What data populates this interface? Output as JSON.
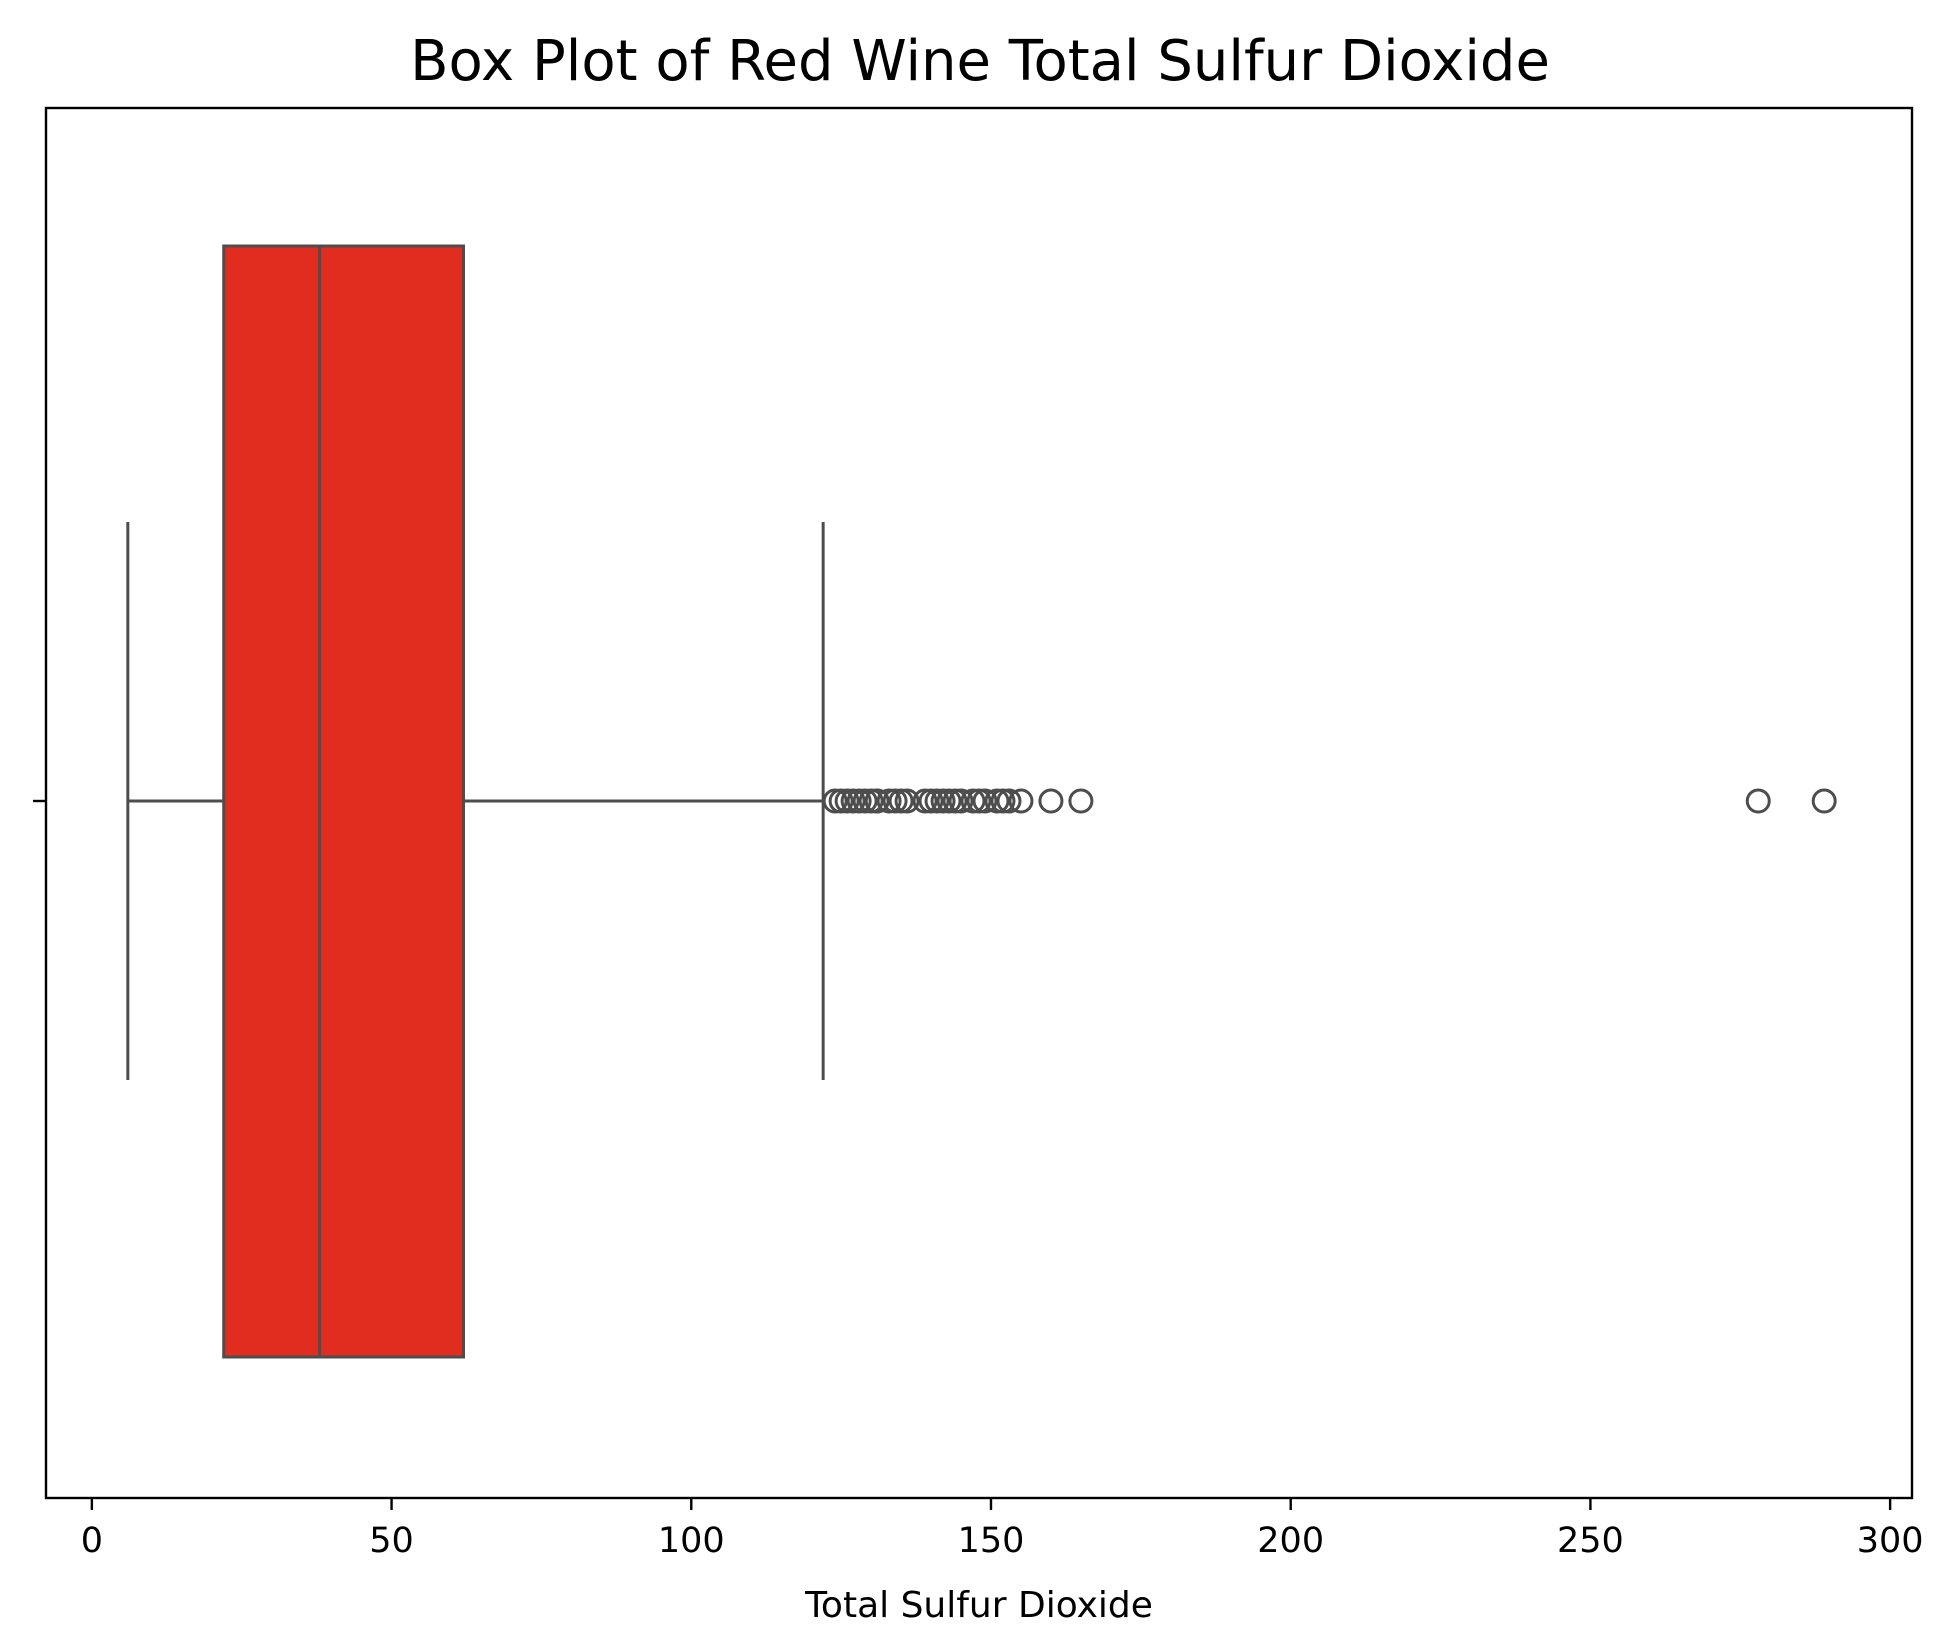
{
  "chart_data": {
    "type": "box",
    "title": "Box Plot of Red Wine Total Sulfur Dioxide",
    "xlabel": "Total Sulfur Dioxide",
    "ylabel": "",
    "orientation": "horizontal",
    "xlim": [
      -7.65,
      303.65
    ],
    "xticks": [
      0,
      50,
      100,
      150,
      200,
      250,
      300
    ],
    "xtick_labels": [
      "0",
      "50",
      "100",
      "150",
      "200",
      "250",
      "300"
    ],
    "grid": false,
    "box": {
      "whisker_low": 6,
      "q1": 22,
      "median": 38,
      "q3": 62,
      "whisker_high": 122,
      "fill_color": "#e02d1f",
      "line_color": "#4d4d4d"
    },
    "outliers": [
      124,
      125,
      126,
      127,
      128,
      129,
      130,
      131,
      131,
      133,
      134,
      135,
      136,
      139,
      140,
      141,
      142,
      143,
      144,
      145,
      147,
      148,
      149,
      151,
      152,
      153,
      155,
      160,
      165,
      278,
      289
    ]
  }
}
